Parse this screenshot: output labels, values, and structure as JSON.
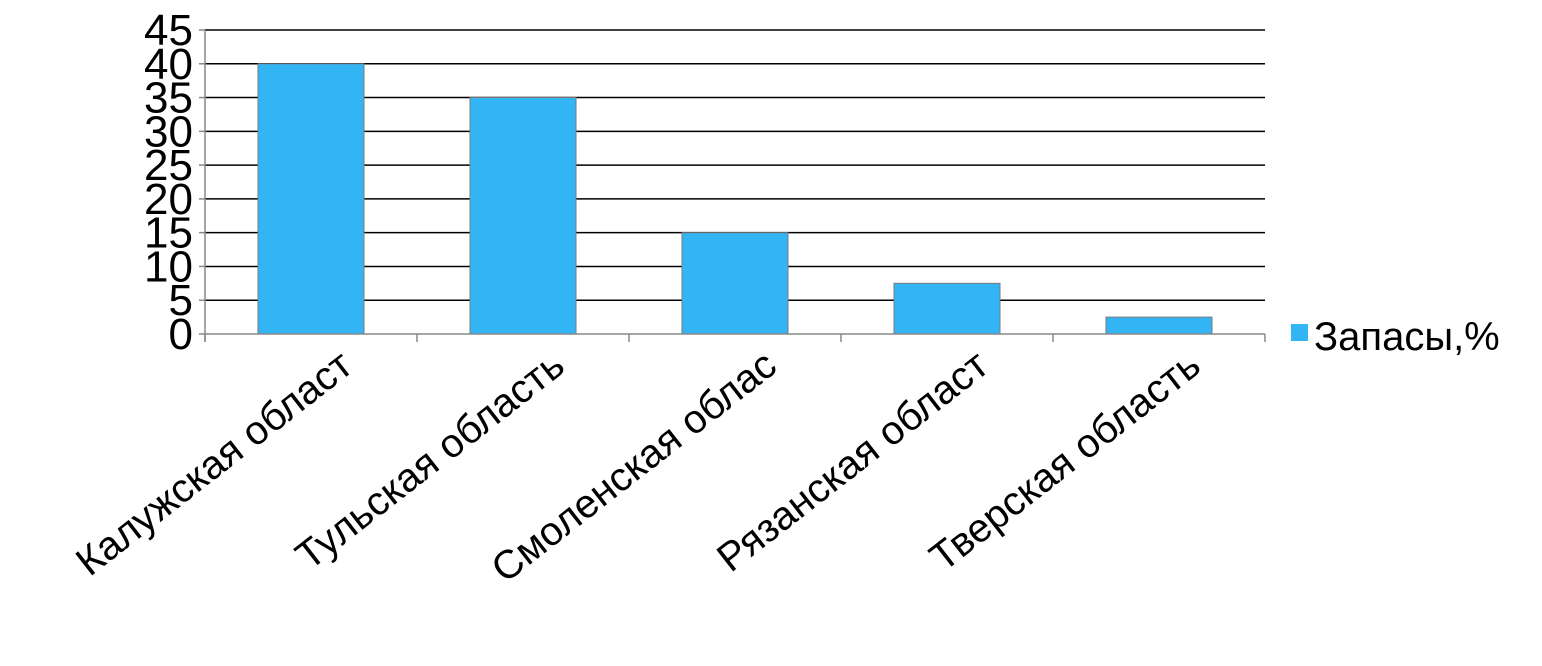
{
  "chart_data": {
    "type": "bar",
    "categories": [
      "Калужская област",
      "Тульская область",
      "Смоленская облас",
      "Рязанская област",
      "Тверская область"
    ],
    "series": [
      {
        "name": "Запасы,%",
        "values": [
          40,
          35,
          15,
          7.5,
          2.5
        ]
      }
    ],
    "yticks": [
      "0",
      "5",
      "10",
      "15",
      "20",
      "25",
      "30",
      "35",
      "40",
      "45"
    ],
    "ylim": [
      0,
      45
    ],
    "grid": true,
    "legend": "right",
    "colors": {
      "bar": "#33b5f5",
      "grid": "#000000",
      "axis": "#888888"
    }
  }
}
